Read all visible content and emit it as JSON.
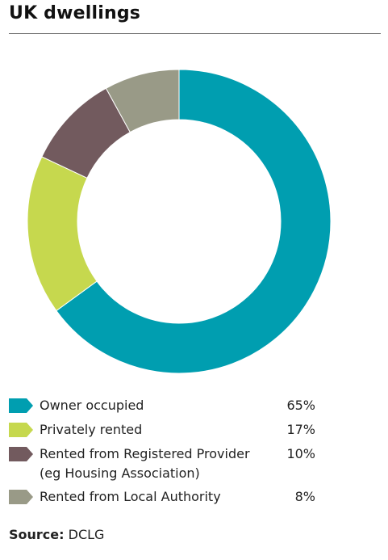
{
  "title": "UK dwellings",
  "source": {
    "label": "Source:",
    "value": "DCLG"
  },
  "colors": {
    "owner_occupied": "#009eb0",
    "privately_rented": "#c6d84e",
    "registered_provider": "#725a5e",
    "local_authority": "#999a87"
  },
  "chart_data": {
    "type": "pie",
    "variant": "donut",
    "title": "UK dwellings",
    "categories": [
      "Owner occupied",
      "Privately rented",
      "Rented from Registered Provider (eg Housing Association)",
      "Rented from Local Authority"
    ],
    "values": [
      65,
      17,
      10,
      8
    ],
    "value_labels": [
      "65%",
      "17%",
      "10%",
      "8%"
    ],
    "unit": "%",
    "start": "12 o'clock, clockwise",
    "legend_position": "bottom"
  },
  "legend": {
    "items": [
      {
        "label": "Owner occupied",
        "value": "65%",
        "color": "#009eb0"
      },
      {
        "label": "Privately rented",
        "value": "17%",
        "color": "#c6d84e"
      },
      {
        "label": "Rented from Registered Provider\n(eg Housing Association)",
        "value": "10%",
        "color": "#725a5e"
      },
      {
        "label": "Rented from Local Authority",
        "value": "8%",
        "color": "#999a87"
      }
    ]
  }
}
